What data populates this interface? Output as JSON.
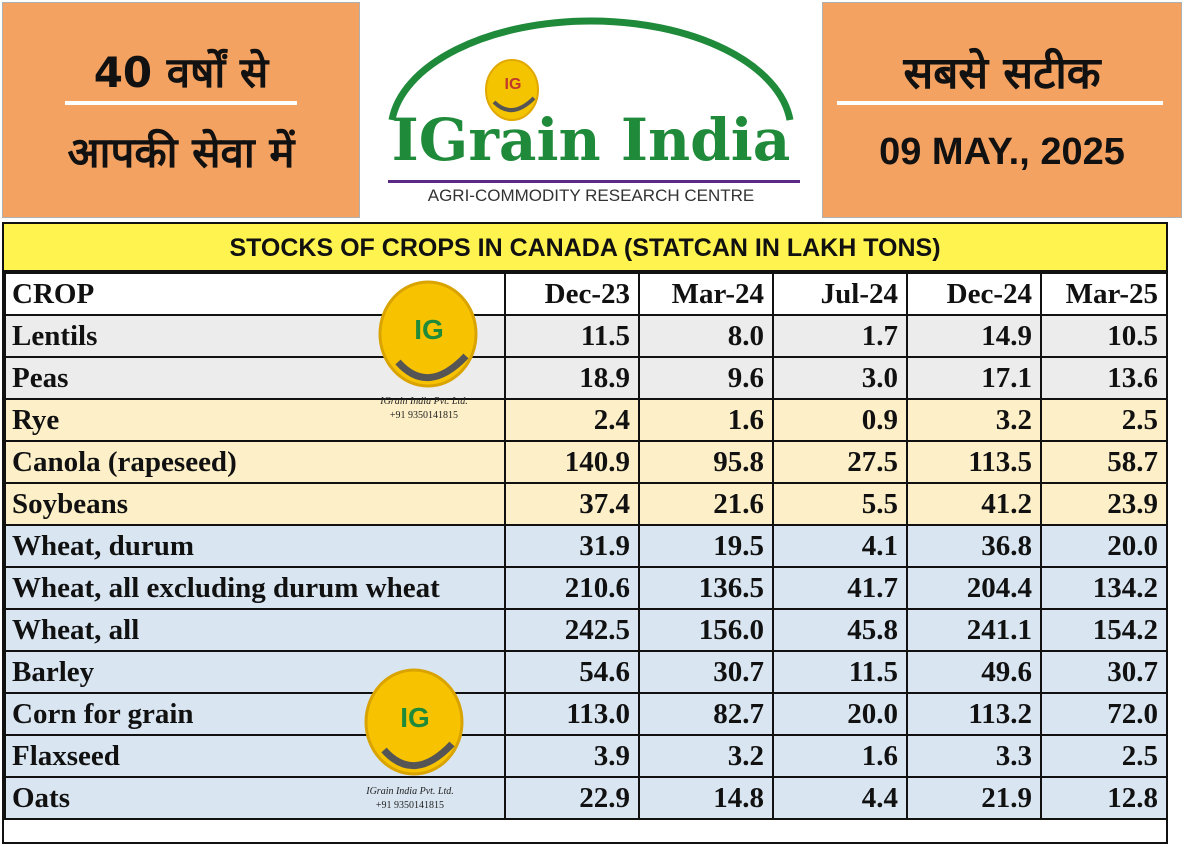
{
  "header": {
    "left_line1": "40 वर्षों से",
    "left_line2": "आपकी सेवा में",
    "right_line1": "सबसे सटीक",
    "date": "09 MAY., 2025",
    "logo_title": "IGrain India",
    "logo_subtitle": "AGRI-COMMODITY RESEARCH CENTRE",
    "logo_badge": "IG"
  },
  "watermark": {
    "badge": "IG",
    "company": "IGrain India Pvt. Ltd.",
    "phone": "+91 9350141815"
  },
  "colors": {
    "header_orange": "#f4a261",
    "title_yellow": "#fff44f",
    "logo_green": "#1f8a3a",
    "row_grey": "#ececec",
    "row_yellow": "#fdf0c8",
    "row_blue": "#d9e6f2"
  },
  "table": {
    "title": "STOCKS OF CROPS IN CANADA (STATCAN IN LAKH TONS)",
    "headers": [
      "CROP",
      "Dec-23",
      "Mar-24",
      "Jul-24",
      "Dec-24",
      "Mar-25"
    ],
    "rows": [
      {
        "group": "grey",
        "cells": [
          "Lentils",
          "11.5",
          "8.0",
          "1.7",
          "14.9",
          "10.5"
        ]
      },
      {
        "group": "grey",
        "cells": [
          "Peas",
          "18.9",
          "9.6",
          "3.0",
          "17.1",
          "13.6"
        ]
      },
      {
        "group": "yellow",
        "cells": [
          "Rye",
          "2.4",
          "1.6",
          "0.9",
          "3.2",
          "2.5"
        ]
      },
      {
        "group": "yellow",
        "cells": [
          "Canola (rapeseed)",
          "140.9",
          "95.8",
          "27.5",
          "113.5",
          "58.7"
        ]
      },
      {
        "group": "yellow",
        "cells": [
          "Soybeans",
          "37.4",
          "21.6",
          "5.5",
          "41.2",
          "23.9"
        ]
      },
      {
        "group": "blue",
        "cells": [
          "Wheat, durum",
          "31.9",
          "19.5",
          "4.1",
          "36.8",
          "20.0"
        ]
      },
      {
        "group": "blue",
        "cells": [
          "Wheat, all excluding durum wheat",
          "210.6",
          "136.5",
          "41.7",
          "204.4",
          "134.2"
        ]
      },
      {
        "group": "blue",
        "cells": [
          "Wheat, all",
          "242.5",
          "156.0",
          "45.8",
          "241.1",
          "154.2"
        ]
      },
      {
        "group": "blue",
        "cells": [
          "Barley",
          "54.6",
          "30.7",
          "11.5",
          "49.6",
          "30.7"
        ]
      },
      {
        "group": "blue",
        "cells": [
          "Corn for grain",
          "113.0",
          "82.7",
          "20.0",
          "113.2",
          "72.0"
        ]
      },
      {
        "group": "blue",
        "cells": [
          "Flaxseed",
          "3.9",
          "3.2",
          "1.6",
          "3.3",
          "2.5"
        ]
      },
      {
        "group": "blue",
        "cells": [
          "Oats",
          "22.9",
          "14.8",
          "4.4",
          "21.9",
          "12.8"
        ]
      }
    ]
  }
}
